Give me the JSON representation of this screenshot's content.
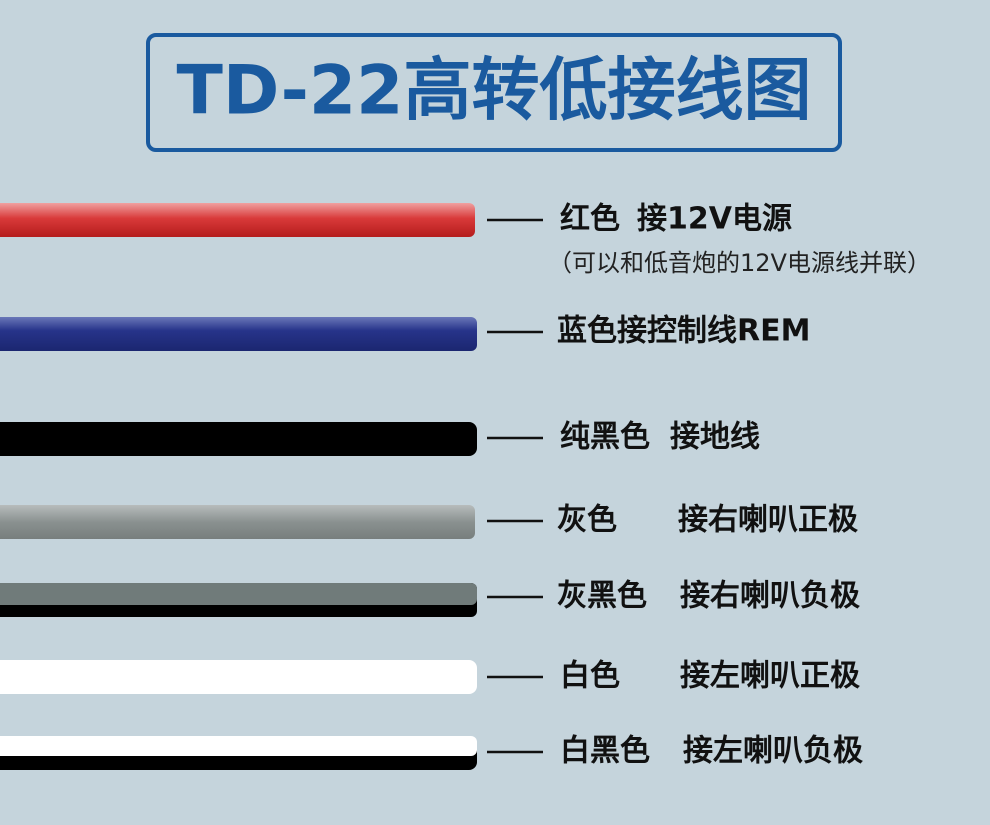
{
  "title": "TD-22高转低接线图",
  "wires": [
    {
      "name": "红色",
      "connection": "接12V电源",
      "note": "（可以和低音炮的12V电源线并联）"
    },
    {
      "name": "蓝色接控制线REM"
    },
    {
      "name": "纯黑色",
      "connection": "接地线"
    },
    {
      "name": "灰色",
      "connection": "接右喇叭正极"
    },
    {
      "name": "灰黑色",
      "connection": "接右喇叭负极"
    },
    {
      "name": "白色",
      "connection": "接左喇叭正极"
    },
    {
      "name": "白黑色",
      "connection": "接左喇叭负极"
    }
  ]
}
